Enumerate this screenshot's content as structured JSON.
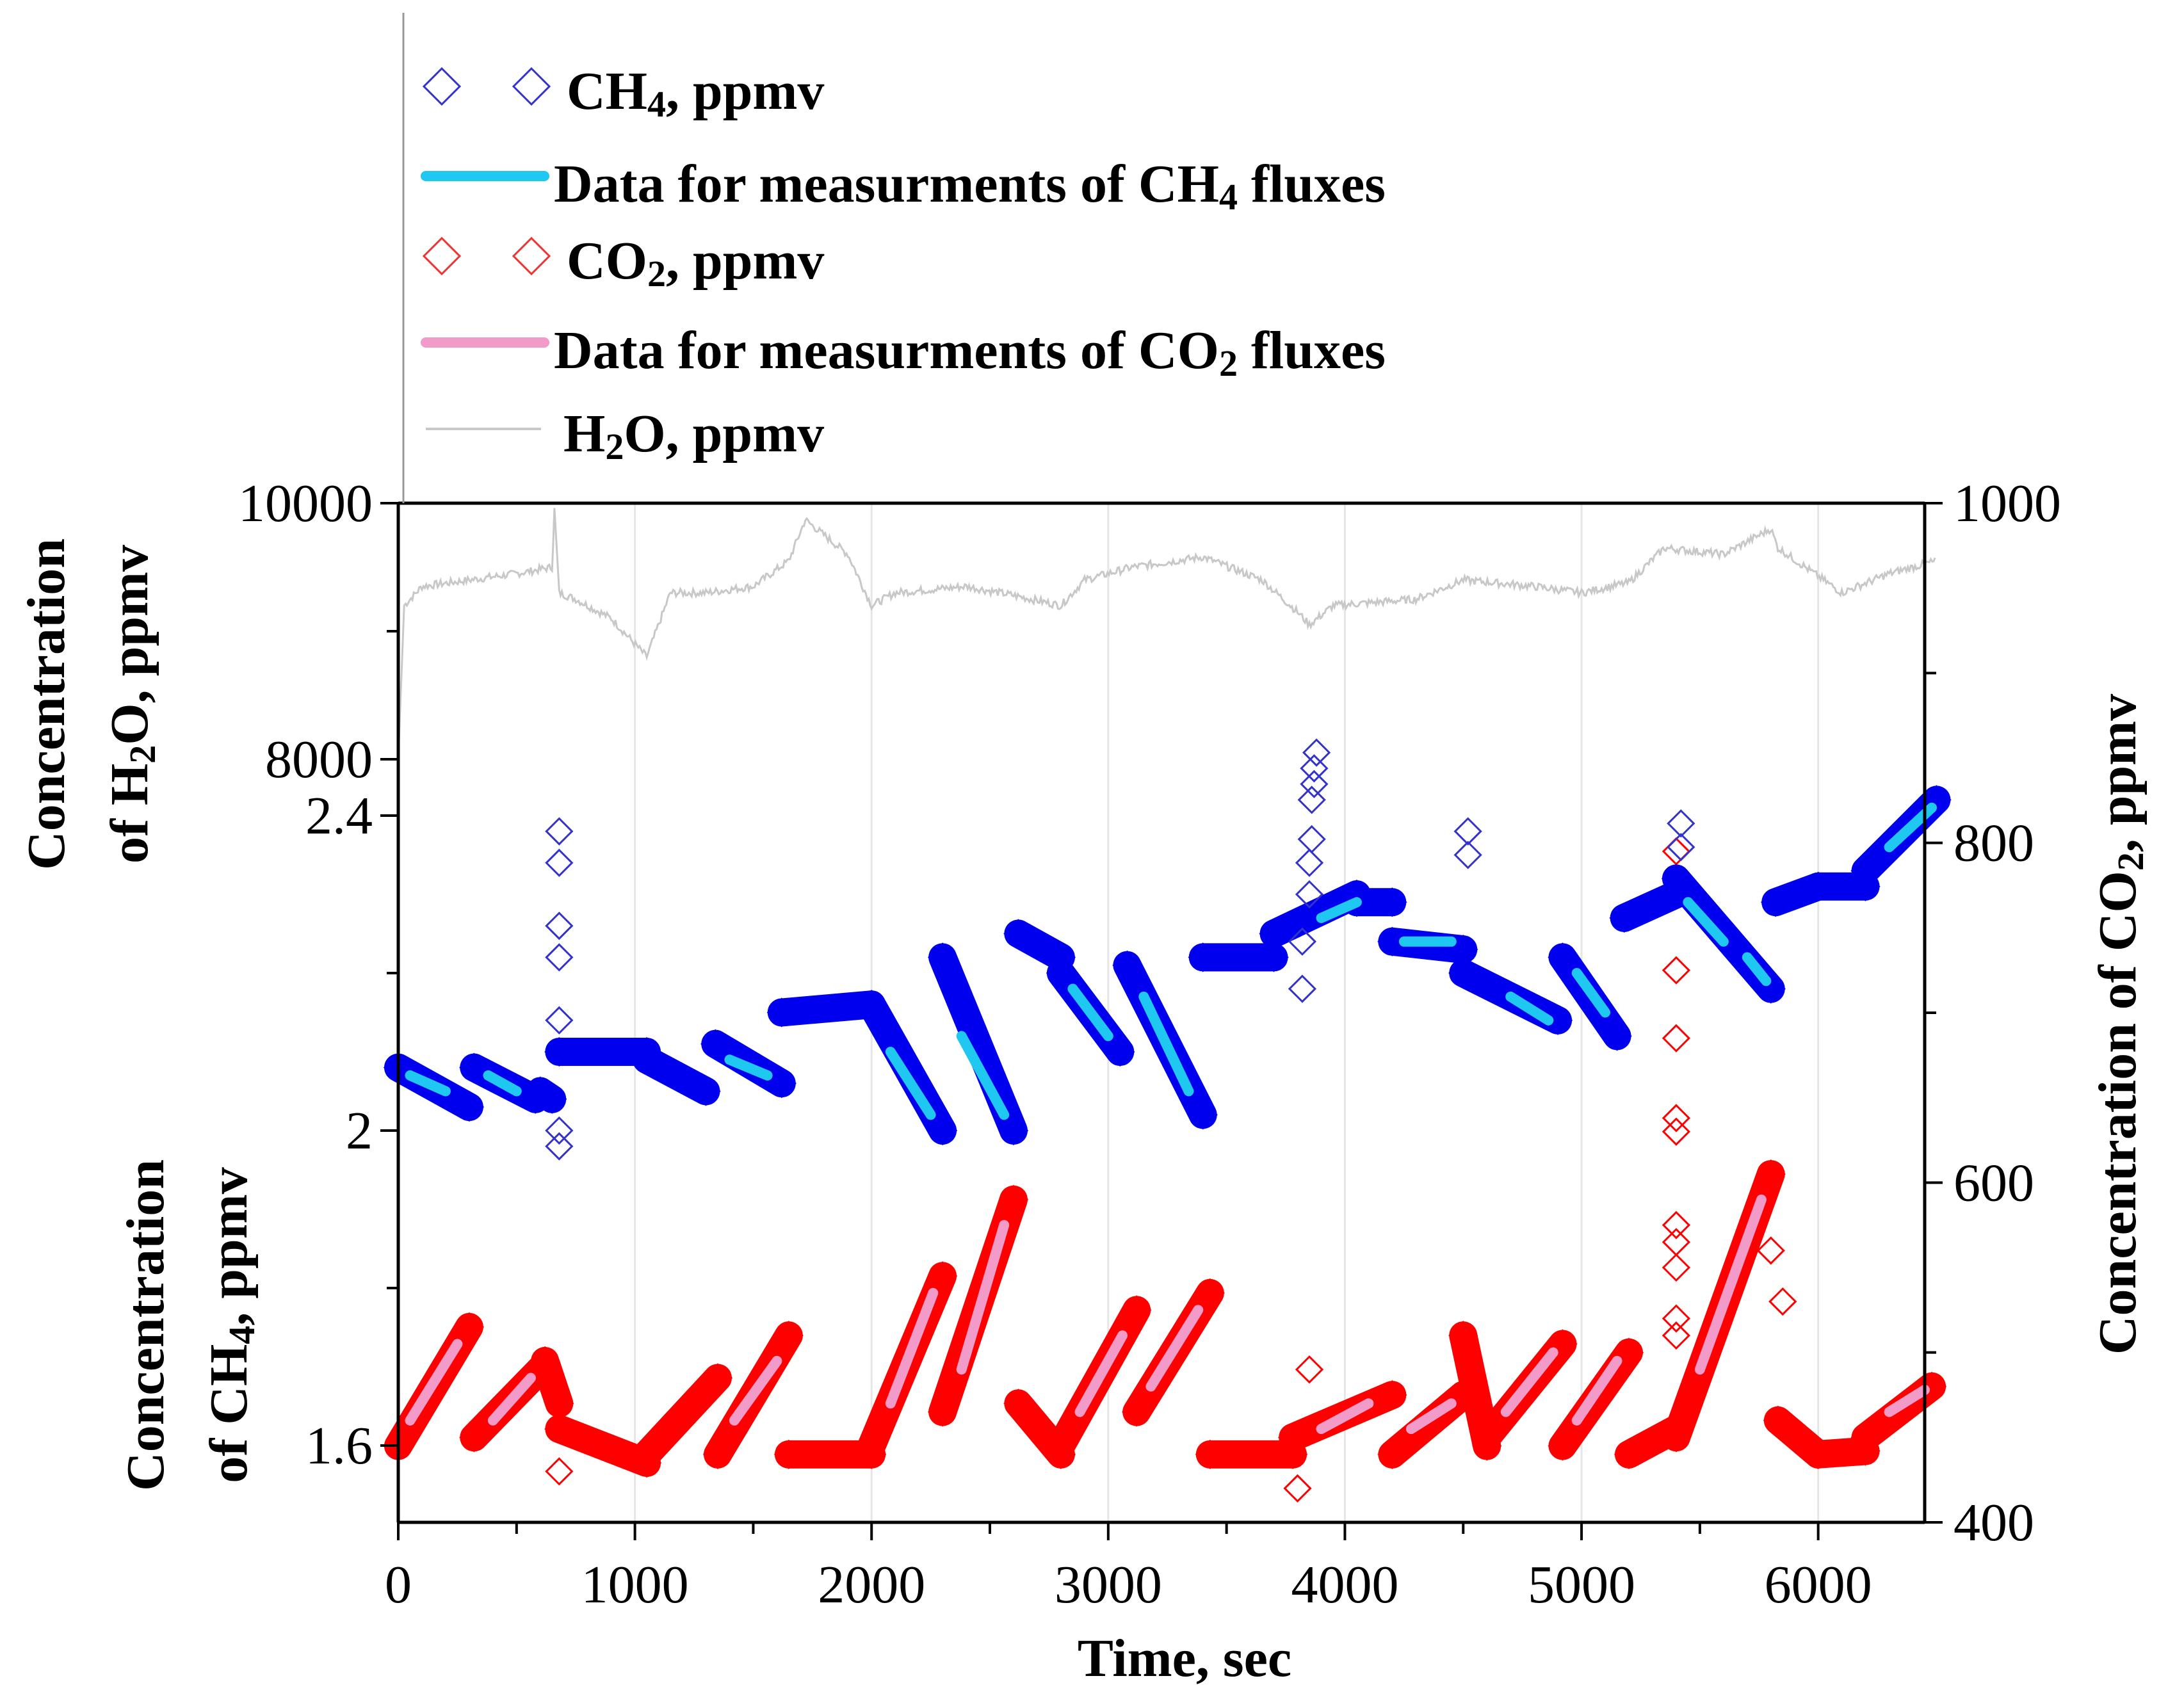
{
  "chart_data": {
    "type": "line",
    "x_axis": {
      "label": "Time, sec",
      "range": [
        0,
        6500
      ],
      "ticks": [
        0,
        1000,
        2000,
        3000,
        4000,
        5000,
        6000
      ]
    },
    "left_axes": [
      {
        "id": "h2o",
        "label_line1": "Concentration",
        "label_line2_pre": "of H",
        "label_line2_sub": "2",
        "label_line2_post": "O, ppmv",
        "range": [
          8000,
          10000
        ],
        "ticks": [
          "8000",
          "10000"
        ]
      },
      {
        "id": "ch4",
        "label_line1": "Concentration",
        "label_line2_pre": "of CH",
        "label_line2_sub": "4",
        "label_line2_post": ", ppmv",
        "range": [
          1.55,
          2.45
        ],
        "ticks": [
          "1.6",
          "2",
          "2.4"
        ]
      }
    ],
    "right_axis": {
      "id": "co2",
      "label_pre": "Concentration of CO",
      "label_sub": "2",
      "label_post": ", ppmv",
      "range": [
        400,
        1000
      ],
      "ticks": [
        "400",
        "600",
        "800",
        "1000"
      ]
    },
    "legend": [
      {
        "pre": "CH",
        "sub": "4",
        "post": ", ppmv",
        "marker": "diamond",
        "color": "#3333cc"
      },
      {
        "pre": "Data for measurments of CH",
        "sub": "4",
        "post": " fluxes",
        "marker": "line",
        "color": "#1ec8f0"
      },
      {
        "pre": "CO",
        "sub": "2",
        "post": ", ppmv",
        "marker": "diamond",
        "color": "#ee3333"
      },
      {
        "pre": "Data for measurments of CO",
        "sub": "2",
        "post": " fluxes",
        "marker": "line",
        "color": "#f29ac8"
      },
      {
        "pre": "H",
        "sub": "2",
        "post": "O, ppmv",
        "marker": "thinline",
        "color": "#c8c8c8"
      }
    ],
    "colors": {
      "ch4": "#0000ee",
      "ch4_flux": "#1ec8f0",
      "co2": "#ff0000",
      "co2_flux": "#f29ac8",
      "h2o": "#c8c8c8",
      "grid": "#e6e6e6"
    },
    "series": {
      "h2o": [
        [
          0,
          8000
        ],
        [
          25,
          9200
        ],
        [
          100,
          9350
        ],
        [
          300,
          9400
        ],
        [
          500,
          9450
        ],
        [
          650,
          9500
        ],
        [
          660,
          9950
        ],
        [
          680,
          9300
        ],
        [
          750,
          9250
        ],
        [
          900,
          9100
        ],
        [
          1050,
          8800
        ],
        [
          1150,
          9300
        ],
        [
          1300,
          9300
        ],
        [
          1500,
          9350
        ],
        [
          1650,
          9550
        ],
        [
          1720,
          9870
        ],
        [
          1900,
          9600
        ],
        [
          2000,
          9200
        ],
        [
          2100,
          9300
        ],
        [
          2400,
          9350
        ],
        [
          2600,
          9280
        ],
        [
          2800,
          9200
        ],
        [
          2900,
          9400
        ],
        [
          3100,
          9500
        ],
        [
          3400,
          9580
        ],
        [
          3650,
          9400
        ],
        [
          3800,
          9150
        ],
        [
          3850,
          9050
        ],
        [
          3950,
          9200
        ],
        [
          4300,
          9250
        ],
        [
          4500,
          9400
        ],
        [
          4800,
          9350
        ],
        [
          5000,
          9300
        ],
        [
          5200,
          9380
        ],
        [
          5350,
          9650
        ],
        [
          5600,
          9600
        ],
        [
          5800,
          9800
        ],
        [
          5830,
          9650
        ],
        [
          6100,
          9300
        ],
        [
          6300,
          9450
        ],
        [
          6500,
          9550
        ]
      ],
      "ch4_segments": [
        {
          "start": [
            0,
            2.08
          ],
          "end": [
            300,
            2.03
          ]
        },
        {
          "start": [
            320,
            2.08
          ],
          "end": [
            580,
            2.04
          ]
        },
        {
          "start": [
            600,
            2.05
          ],
          "end": [
            650,
            2.04
          ]
        },
        {
          "start": [
            680,
            2.1
          ],
          "end": [
            1050,
            2.1
          ]
        },
        {
          "start": [
            1050,
            2.09
          ],
          "end": [
            1300,
            2.05
          ]
        },
        {
          "start": [
            1340,
            2.11
          ],
          "end": [
            1620,
            2.06
          ]
        },
        {
          "start": [
            1620,
            2.15
          ],
          "end": [
            2000,
            2.16
          ]
        },
        {
          "start": [
            2000,
            2.16
          ],
          "end": [
            2300,
            2.0
          ]
        },
        {
          "start": [
            2300,
            2.22
          ],
          "end": [
            2600,
            2.0
          ]
        },
        {
          "start": [
            2620,
            2.25
          ],
          "end": [
            2800,
            2.22
          ]
        },
        {
          "start": [
            2800,
            2.2
          ],
          "end": [
            3050,
            2.1
          ]
        },
        {
          "start": [
            3080,
            2.21
          ],
          "end": [
            3400,
            2.02
          ]
        },
        {
          "start": [
            3400,
            2.22
          ],
          "end": [
            3700,
            2.22
          ]
        },
        {
          "start": [
            3700,
            2.25
          ],
          "end": [
            4050,
            2.3
          ]
        },
        {
          "start": [
            4050,
            2.29
          ],
          "end": [
            4200,
            2.29
          ]
        },
        {
          "start": [
            4200,
            2.24
          ],
          "end": [
            4500,
            2.23
          ]
        },
        {
          "start": [
            4500,
            2.2
          ],
          "end": [
            4900,
            2.14
          ]
        },
        {
          "start": [
            4920,
            2.22
          ],
          "end": [
            5150,
            2.12
          ]
        },
        {
          "start": [
            5180,
            2.27
          ],
          "end": [
            5400,
            2.3
          ]
        },
        {
          "start": [
            5400,
            2.32
          ],
          "end": [
            5800,
            2.18
          ]
        },
        {
          "start": [
            5820,
            2.29
          ],
          "end": [
            6000,
            2.31
          ]
        },
        {
          "start": [
            6000,
            2.31
          ],
          "end": [
            6200,
            2.31
          ]
        },
        {
          "start": [
            6200,
            2.33
          ],
          "end": [
            6500,
            2.42
          ]
        }
      ],
      "ch4_flux_segments": [
        {
          "start": [
            50,
            2.07
          ],
          "end": [
            200,
            2.05
          ]
        },
        {
          "start": [
            380,
            2.07
          ],
          "end": [
            500,
            2.05
          ]
        },
        {
          "start": [
            1400,
            2.09
          ],
          "end": [
            1560,
            2.07
          ]
        },
        {
          "start": [
            2080,
            2.1
          ],
          "end": [
            2250,
            2.02
          ]
        },
        {
          "start": [
            2380,
            2.12
          ],
          "end": [
            2560,
            2.02
          ]
        },
        {
          "start": [
            2850,
            2.18
          ],
          "end": [
            3000,
            2.12
          ]
        },
        {
          "start": [
            3150,
            2.17
          ],
          "end": [
            3340,
            2.05
          ]
        },
        {
          "start": [
            3900,
            2.27
          ],
          "end": [
            4050,
            2.29
          ]
        },
        {
          "start": [
            4250,
            2.24
          ],
          "end": [
            4450,
            2.24
          ]
        },
        {
          "start": [
            4700,
            2.17
          ],
          "end": [
            4860,
            2.14
          ]
        },
        {
          "start": [
            4980,
            2.2
          ],
          "end": [
            5100,
            2.15
          ]
        },
        {
          "start": [
            5450,
            2.29
          ],
          "end": [
            5600,
            2.24
          ]
        },
        {
          "start": [
            5700,
            2.22
          ],
          "end": [
            5780,
            2.19
          ]
        },
        {
          "start": [
            6300,
            2.36
          ],
          "end": [
            6480,
            2.41
          ]
        }
      ],
      "co2_segments": [
        {
          "start": [
            0,
            445
          ],
          "end": [
            300,
            515
          ]
        },
        {
          "start": [
            320,
            450
          ],
          "end": [
            600,
            490
          ]
        },
        {
          "start": [
            620,
            495
          ],
          "end": [
            680,
            470
          ]
        },
        {
          "start": [
            680,
            455
          ],
          "end": [
            1050,
            435
          ]
        },
        {
          "start": [
            1050,
            440
          ],
          "end": [
            1350,
            485
          ]
        },
        {
          "start": [
            1350,
            440
          ],
          "end": [
            1650,
            510
          ]
        },
        {
          "start": [
            1650,
            440
          ],
          "end": [
            2000,
            440
          ]
        },
        {
          "start": [
            2000,
            445
          ],
          "end": [
            2300,
            545
          ]
        },
        {
          "start": [
            2300,
            465
          ],
          "end": [
            2600,
            590
          ]
        },
        {
          "start": [
            2620,
            470
          ],
          "end": [
            2800,
            440
          ]
        },
        {
          "start": [
            2800,
            445
          ],
          "end": [
            3120,
            525
          ]
        },
        {
          "start": [
            3120,
            465
          ],
          "end": [
            3430,
            535
          ]
        },
        {
          "start": [
            3430,
            440
          ],
          "end": [
            3780,
            440
          ]
        },
        {
          "start": [
            3780,
            450
          ],
          "end": [
            4200,
            475
          ]
        },
        {
          "start": [
            4200,
            440
          ],
          "end": [
            4500,
            475
          ]
        },
        {
          "start": [
            4500,
            510
          ],
          "end": [
            4600,
            445
          ]
        },
        {
          "start": [
            4600,
            450
          ],
          "end": [
            4920,
            505
          ]
        },
        {
          "start": [
            4920,
            445
          ],
          "end": [
            5200,
            500
          ]
        },
        {
          "start": [
            5200,
            440
          ],
          "end": [
            5400,
            455
          ]
        },
        {
          "start": [
            5400,
            450
          ],
          "end": [
            5800,
            605
          ]
        },
        {
          "start": [
            5830,
            460
          ],
          "end": [
            6000,
            440
          ]
        },
        {
          "start": [
            6000,
            440
          ],
          "end": [
            6200,
            442
          ]
        },
        {
          "start": [
            6200,
            450
          ],
          "end": [
            6480,
            480
          ]
        }
      ],
      "co2_flux_segments": [
        {
          "start": [
            50,
            460
          ],
          "end": [
            250,
            505
          ]
        },
        {
          "start": [
            400,
            460
          ],
          "end": [
            560,
            485
          ]
        },
        {
          "start": [
            1420,
            460
          ],
          "end": [
            1600,
            495
          ]
        },
        {
          "start": [
            2080,
            470
          ],
          "end": [
            2260,
            535
          ]
        },
        {
          "start": [
            2380,
            490
          ],
          "end": [
            2560,
            575
          ]
        },
        {
          "start": [
            2880,
            465
          ],
          "end": [
            3060,
            510
          ]
        },
        {
          "start": [
            3180,
            480
          ],
          "end": [
            3380,
            525
          ]
        },
        {
          "start": [
            3900,
            455
          ],
          "end": [
            4100,
            470
          ]
        },
        {
          "start": [
            4280,
            455
          ],
          "end": [
            4450,
            470
          ]
        },
        {
          "start": [
            4680,
            465
          ],
          "end": [
            4880,
            500
          ]
        },
        {
          "start": [
            4980,
            460
          ],
          "end": [
            5150,
            495
          ]
        },
        {
          "start": [
            5500,
            490
          ],
          "end": [
            5760,
            590
          ]
        },
        {
          "start": [
            6300,
            465
          ],
          "end": [
            6450,
            478
          ]
        }
      ],
      "ch4_scatter_outliers": [
        [
          680,
          1.98
        ],
        [
          680,
          2.0
        ],
        [
          680,
          2.14
        ],
        [
          680,
          2.22
        ],
        [
          680,
          2.26
        ],
        [
          680,
          2.34
        ],
        [
          680,
          2.38
        ],
        [
          3820,
          2.18
        ],
        [
          3820,
          2.24
        ],
        [
          3850,
          2.3
        ],
        [
          3850,
          2.34
        ],
        [
          3860,
          2.37
        ],
        [
          3860,
          2.42
        ],
        [
          3870,
          2.44
        ],
        [
          3870,
          2.46
        ],
        [
          3880,
          2.48
        ],
        [
          4520,
          2.35
        ],
        [
          4520,
          2.38
        ],
        [
          5420,
          2.36
        ],
        [
          5420,
          2.39
        ]
      ],
      "co2_scatter_outliers": [
        [
          680,
          430
        ],
        [
          3800,
          420
        ],
        [
          3850,
          490
        ],
        [
          5400,
          795
        ],
        [
          5400,
          725
        ],
        [
          5400,
          685
        ],
        [
          5400,
          638
        ],
        [
          5400,
          630
        ],
        [
          5400,
          575
        ],
        [
          5400,
          565
        ],
        [
          5400,
          550
        ],
        [
          5800,
          560
        ],
        [
          5850,
          530
        ],
        [
          5400,
          520
        ],
        [
          5400,
          510
        ]
      ]
    }
  }
}
